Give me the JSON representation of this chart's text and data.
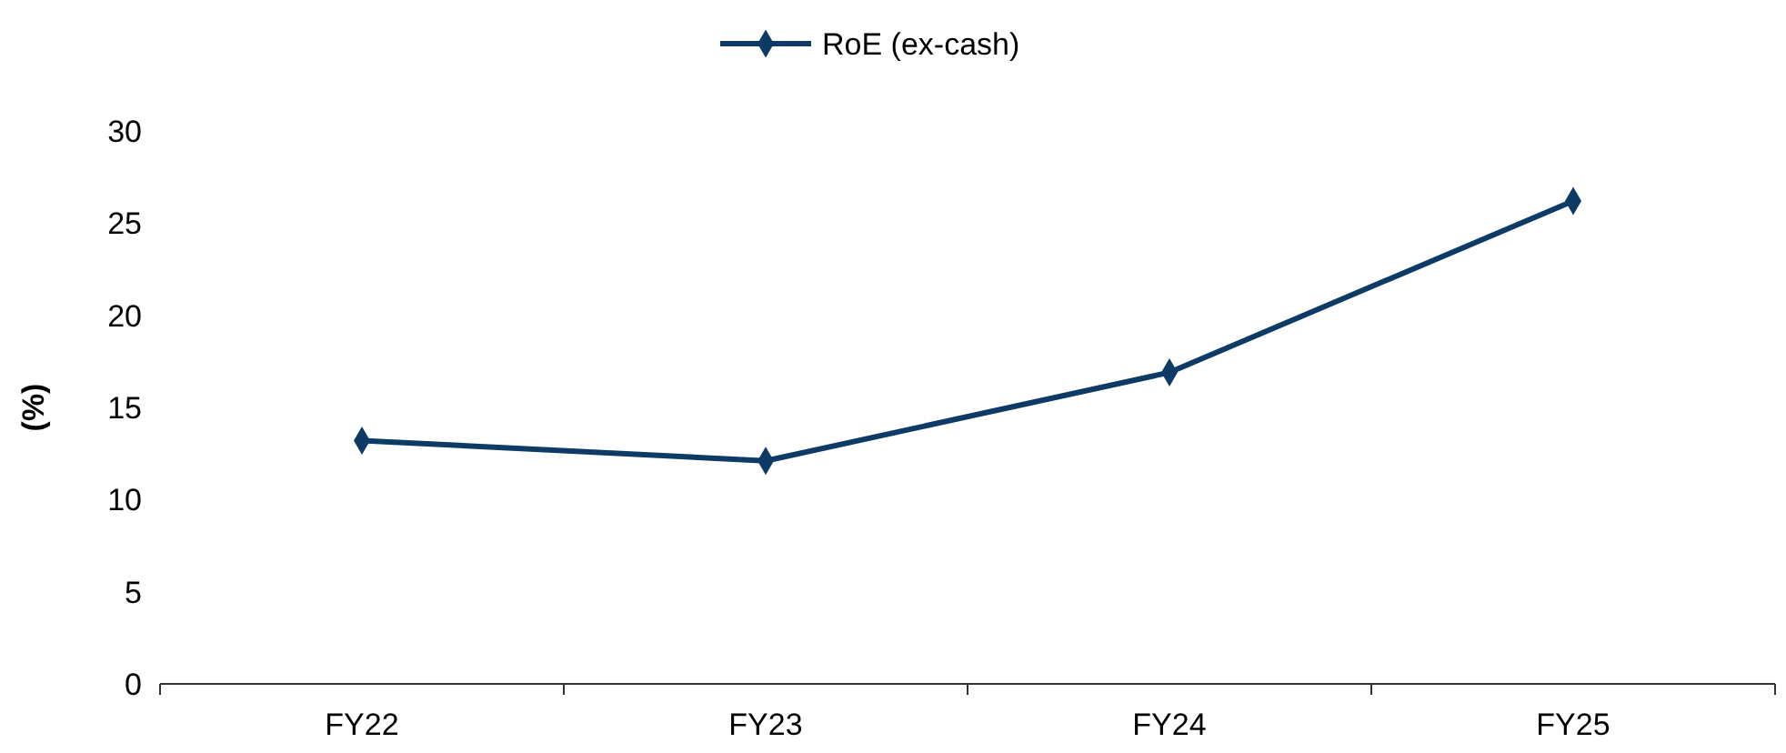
{
  "chart_data": {
    "type": "line",
    "ylabel": "(%)",
    "categories": [
      "FY22",
      "FY23",
      "FY24",
      "FY25"
    ],
    "series": [
      {
        "name": "RoE (ex-cash)",
        "color": "#0d3b66",
        "values": [
          13.2,
          12.1,
          16.9,
          26.2
        ]
      }
    ],
    "ylim": [
      0,
      30
    ],
    "yticks": [
      0,
      5,
      10,
      15,
      20,
      25,
      30
    ],
    "legend": "top",
    "marker": "diamond",
    "line_style": "solid",
    "grid": false
  }
}
